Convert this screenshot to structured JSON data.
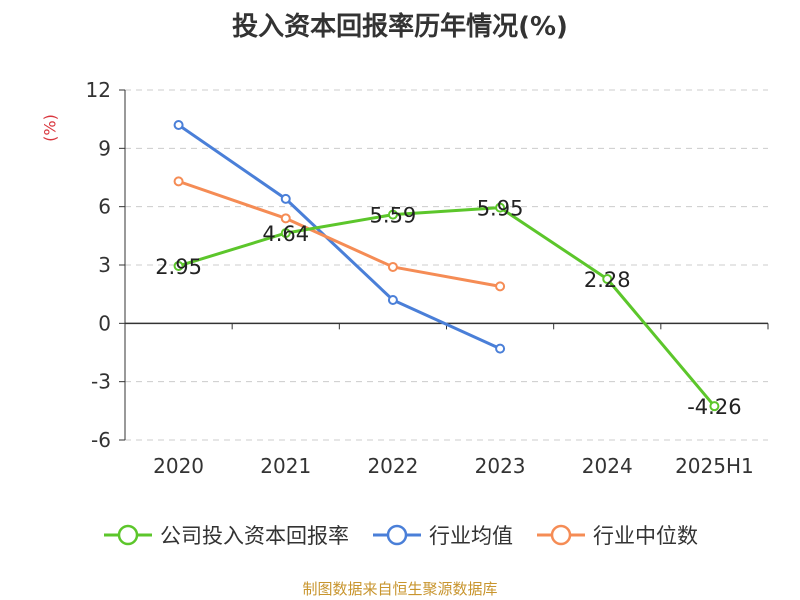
{
  "chart_data": {
    "type": "line",
    "title": "投入资本回报率历年情况(%)",
    "ylabel": "(%)",
    "categories": [
      "2020",
      "2021",
      "2022",
      "2023",
      "2024",
      "2025H1"
    ],
    "ylim": [
      -6,
      12
    ],
    "yticks": [
      -6,
      -3,
      0,
      3,
      6,
      9,
      12
    ],
    "grid": true,
    "legend_position": "bottom",
    "series": [
      {
        "name": "公司投入资本回报率",
        "color": "#5cc62b",
        "values": [
          2.95,
          4.64,
          5.59,
          5.95,
          2.28,
          -4.26
        ],
        "labels": [
          "2.95",
          "4.64",
          "5.59",
          "5.95",
          "2.28",
          "-4.26"
        ]
      },
      {
        "name": "行业均值",
        "color": "#4a7fd8",
        "values": [
          10.2,
          6.4,
          1.2,
          -1.3,
          null,
          null
        ]
      },
      {
        "name": "行业中位数",
        "color": "#f58c55",
        "values": [
          7.3,
          5.4,
          2.9,
          1.9,
          null,
          null
        ]
      }
    ]
  },
  "source": "制图数据来自恒生聚源数据库"
}
